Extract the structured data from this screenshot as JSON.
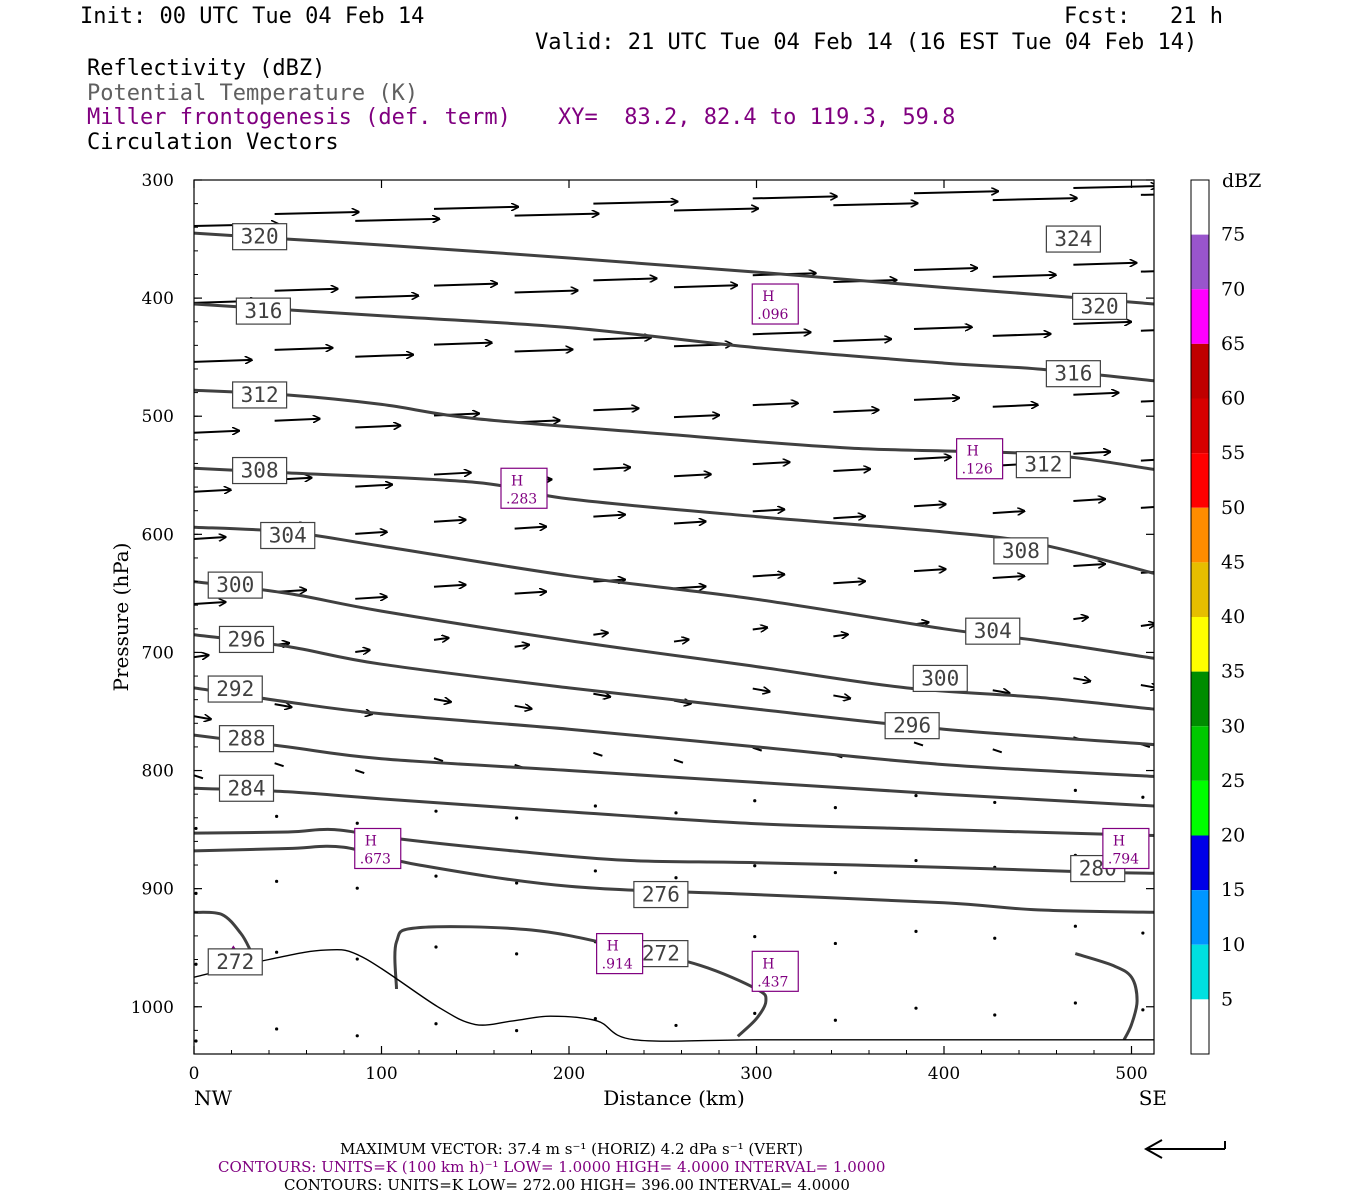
{
  "header": {
    "init": "Init: 00 UTC Tue 04 Feb 14",
    "fcst": "Fcst:   21 h",
    "valid": "Valid: 21 UTC Tue 04 Feb 14 (16 EST Tue 04 Feb 14)",
    "field1": "Reflectivity (dBZ)",
    "field2": "Potential Temperature (K)",
    "field3": "Miller frontogenesis (def. term)",
    "xy": "XY=  83.2, 82.4 to 119.3, 59.8",
    "field4": "Circulation Vectors"
  },
  "colors": {
    "theta": "#404040",
    "fronto": "#800080",
    "vector": "#000000"
  },
  "chart_data": {
    "type": "cross-section",
    "xlabel": "Distance (km)",
    "ylabel": "Pressure (hPa)",
    "xlim": [
      0,
      512
    ],
    "ylim": [
      1040,
      300
    ],
    "yscale": "linear-reversed",
    "x_ticks": [
      0,
      100,
      200,
      300,
      400,
      500
    ],
    "y_ticks": [
      300,
      400,
      500,
      600,
      700,
      800,
      900,
      1000
    ],
    "x_end_labels": {
      "left": "NW",
      "right": "SE"
    },
    "theta_contours": [
      {
        "value": 320,
        "points": [
          [
            0,
            345
          ],
          [
            50,
            350
          ],
          [
            100,
            355
          ],
          [
            200,
            366
          ],
          [
            300,
            378
          ],
          [
            400,
            391
          ],
          [
            450,
            397
          ],
          [
            512,
            405
          ]
        ]
      },
      {
        "value": 316,
        "points": [
          [
            0,
            405
          ],
          [
            50,
            410
          ],
          [
            100,
            415
          ],
          [
            200,
            425
          ],
          [
            300,
            442
          ],
          [
            400,
            455
          ],
          [
            450,
            460
          ],
          [
            512,
            470
          ]
        ]
      },
      {
        "value": 312,
        "points": [
          [
            0,
            478
          ],
          [
            50,
            482
          ],
          [
            100,
            490
          ],
          [
            150,
            502
          ],
          [
            250,
            515
          ],
          [
            350,
            527
          ],
          [
            450,
            532
          ],
          [
            512,
            545
          ]
        ]
      },
      {
        "value": 308,
        "points": [
          [
            0,
            544
          ],
          [
            50,
            548
          ],
          [
            150,
            556
          ],
          [
            200,
            570
          ],
          [
            300,
            585
          ],
          [
            400,
            598
          ],
          [
            450,
            608
          ],
          [
            512,
            633
          ]
        ]
      },
      {
        "value": 304,
        "points": [
          [
            0,
            594
          ],
          [
            50,
            598
          ],
          [
            100,
            610
          ],
          [
            200,
            635
          ],
          [
            300,
            655
          ],
          [
            400,
            680
          ],
          [
            450,
            690
          ],
          [
            512,
            705
          ]
        ]
      },
      {
        "value": 300,
        "points": [
          [
            0,
            640
          ],
          [
            50,
            650
          ],
          [
            100,
            665
          ],
          [
            200,
            690
          ],
          [
            300,
            712
          ],
          [
            380,
            730
          ],
          [
            450,
            738
          ],
          [
            512,
            748
          ]
        ]
      },
      {
        "value": 296,
        "points": [
          [
            0,
            685
          ],
          [
            50,
            695
          ],
          [
            100,
            710
          ],
          [
            200,
            730
          ],
          [
            300,
            748
          ],
          [
            400,
            765
          ],
          [
            512,
            778
          ]
        ]
      },
      {
        "value": 292,
        "points": [
          [
            0,
            730
          ],
          [
            50,
            742
          ],
          [
            100,
            752
          ],
          [
            200,
            765
          ],
          [
            300,
            780
          ],
          [
            400,
            795
          ],
          [
            512,
            805
          ]
        ]
      },
      {
        "value": 288,
        "points": [
          [
            0,
            770
          ],
          [
            50,
            780
          ],
          [
            100,
            790
          ],
          [
            200,
            800
          ],
          [
            300,
            810
          ],
          [
            400,
            820
          ],
          [
            512,
            830
          ]
        ]
      },
      {
        "value": 284,
        "points": [
          [
            0,
            815
          ],
          [
            50,
            818
          ],
          [
            100,
            824
          ],
          [
            200,
            835
          ],
          [
            300,
            845
          ],
          [
            400,
            850
          ],
          [
            512,
            855
          ]
        ]
      },
      {
        "value": 280,
        "points": [
          [
            0,
            853
          ],
          [
            50,
            852
          ],
          [
            75,
            850
          ],
          [
            110,
            858
          ],
          [
            170,
            868
          ],
          [
            230,
            876
          ],
          [
            300,
            878
          ],
          [
            400,
            882
          ],
          [
            480,
            886
          ],
          [
            512,
            887
          ]
        ]
      },
      {
        "value": 276,
        "points": [
          [
            0,
            868
          ],
          [
            50,
            866
          ],
          [
            80,
            865
          ],
          [
            120,
            880
          ],
          [
            200,
            898
          ],
          [
            300,
            905
          ],
          [
            400,
            912
          ],
          [
            450,
            918
          ],
          [
            512,
            920
          ]
        ]
      },
      {
        "value": 272,
        "points": [
          [
            0,
            920
          ],
          [
            15,
            922
          ],
          [
            25,
            938
          ],
          [
            30,
            952
          ]
        ]
      },
      {
        "value": 272,
        "points": [
          [
            108,
            985
          ],
          [
            108,
            945
          ],
          [
            120,
            933
          ],
          [
            180,
            935
          ],
          [
            230,
            950
          ],
          [
            270,
            965
          ],
          [
            300,
            985
          ],
          [
            305,
            995
          ],
          [
            300,
            1010
          ],
          [
            290,
            1025
          ]
        ]
      },
      {
        "value": 272,
        "points": [
          [
            470,
            955
          ],
          [
            490,
            965
          ],
          [
            500,
            975
          ],
          [
            503,
            995
          ],
          [
            500,
            1015
          ],
          [
            496,
            1028
          ]
        ]
      }
    ],
    "reflectivity_lines": [
      {
        "points": [
          [
            0,
            975
          ],
          [
            40,
            960
          ],
          [
            70,
            952
          ],
          [
            90,
            958
          ],
          [
            130,
            1000
          ],
          [
            150,
            1015
          ],
          [
            170,
            1012
          ],
          [
            190,
            1008
          ],
          [
            215,
            1012
          ],
          [
            235,
            1028
          ],
          [
            300,
            1028
          ],
          [
            400,
            1028
          ],
          [
            512,
            1028
          ]
        ]
      }
    ],
    "contour_labels": [
      {
        "value": 320,
        "x": 35,
        "p": 348
      },
      {
        "value": 316,
        "x": 37,
        "p": 411
      },
      {
        "value": 312,
        "x": 35,
        "p": 482
      },
      {
        "value": 308,
        "x": 35,
        "p": 546
      },
      {
        "value": 304,
        "x": 50,
        "p": 601
      },
      {
        "value": 300,
        "x": 22,
        "p": 643
      },
      {
        "value": 296,
        "x": 28,
        "p": 689
      },
      {
        "value": 292,
        "x": 22,
        "p": 731
      },
      {
        "value": 288,
        "x": 28,
        "p": 773
      },
      {
        "value": 284,
        "x": 28,
        "p": 815
      },
      {
        "value": 276,
        "x": 249,
        "p": 905
      },
      {
        "value": 272,
        "x": 249,
        "p": 955
      },
      {
        "value": 272,
        "x": 22,
        "p": 962
      },
      {
        "value": 280,
        "x": 482,
        "p": 883
      },
      {
        "value": 296,
        "x": 383,
        "p": 762
      },
      {
        "value": 300,
        "x": 398,
        "p": 722
      },
      {
        "value": 304,
        "x": 426,
        "p": 682
      },
      {
        "value": 308,
        "x": 441,
        "p": 614
      },
      {
        "value": 312,
        "x": 453,
        "p": 541
      },
      {
        "value": 316,
        "x": 469,
        "p": 464
      },
      {
        "value": 320,
        "x": 483,
        "p": 407
      },
      {
        "value": 324,
        "x": 469,
        "p": 350
      }
    ],
    "fronto_maxima": [
      {
        "label": "H",
        "value": ".096",
        "x": 310,
        "p": 405
      },
      {
        "label": "H",
        "value": ".126",
        "x": 419,
        "p": 536
      },
      {
        "label": "H",
        "value": ".283",
        "x": 176,
        "p": 561
      },
      {
        "label": "H",
        "value": ".673",
        "x": 98,
        "p": 866
      },
      {
        "label": "H",
        "value": ".794",
        "x": 497,
        "p": 866
      },
      {
        "label": "H",
        "value": ".914",
        "x": 227,
        "p": 955
      },
      {
        "label": "H",
        "value": ".437",
        "x": 310,
        "p": 970
      }
    ],
    "colorbar": {
      "title": "dBZ",
      "levels": [
        5,
        10,
        15,
        20,
        25,
        30,
        35,
        40,
        45,
        50,
        55,
        60,
        65,
        70,
        75
      ],
      "colors": [
        "#ffffff",
        "#00e0e0",
        "#0096ff",
        "#0000e8",
        "#00ff00",
        "#00c800",
        "#008c00",
        "#ffff00",
        "#e6be00",
        "#ff8c00",
        "#ff0000",
        "#d60000",
        "#c00000",
        "#ff00ff",
        "#9955cc",
        "#ffffff"
      ]
    },
    "vector_scale": {
      "direction": "left"
    }
  },
  "footer": {
    "line1": "MAXIMUM VECTOR:  37.4 m s⁻¹ (HORIZ)          4.2 dPa s⁻¹ (VERT)",
    "line2": "CONTOURS:  UNITS=K (100 km h)⁻¹  LOW=  1.0000        HIGH=  4.0000        INTERVAL=   1.0000",
    "line3": "CONTOURS:  UNITS=K  LOW=  272.00        HIGH=  396.00        INTERVAL=   4.0000"
  }
}
